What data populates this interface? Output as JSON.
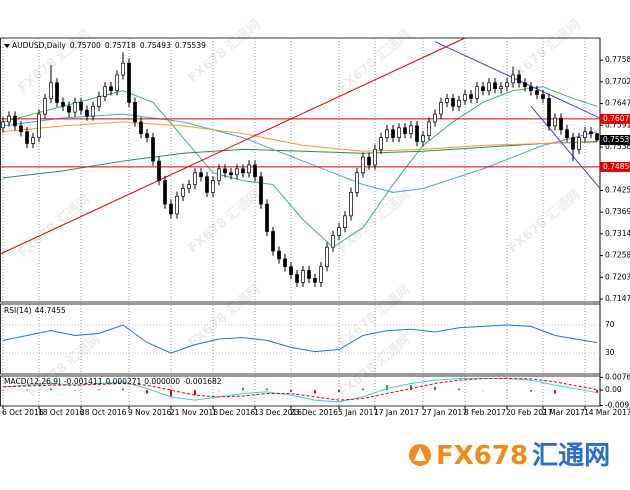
{
  "chart_data": {
    "type": "candlestick",
    "symbol": "AUDUSD,Daily",
    "candles": {
      "open": [
        0.7585,
        0.76,
        0.7615,
        0.759,
        0.7575,
        0.7545,
        0.756,
        0.762,
        0.766,
        0.77,
        0.765,
        0.764,
        0.7625,
        0.765,
        0.763,
        0.7615,
        0.764,
        0.7665,
        0.769,
        0.768,
        0.772,
        0.775,
        0.765,
        0.76,
        0.757,
        0.756,
        0.75,
        0.745,
        0.739,
        0.7365,
        0.741,
        0.743,
        0.744,
        0.747,
        0.746,
        0.742,
        0.745,
        0.748,
        0.747,
        0.7465,
        0.748,
        0.747,
        0.749,
        0.746,
        0.739,
        0.732,
        0.727,
        0.725,
        0.723,
        0.721,
        0.719,
        0.722,
        0.72,
        0.719,
        0.723,
        0.728,
        0.731,
        0.733,
        0.736,
        0.742,
        0.747,
        0.751,
        0.749,
        0.753,
        0.756,
        0.758,
        0.756,
        0.7585,
        0.757,
        0.759,
        0.755,
        0.7565,
        0.76,
        0.762,
        0.765,
        0.766,
        0.764,
        0.7655,
        0.767,
        0.766,
        0.769,
        0.768,
        0.77,
        0.7685,
        0.769,
        0.77,
        0.772,
        0.77,
        0.769,
        0.768,
        0.767,
        0.766,
        0.759,
        0.761,
        0.758,
        0.756,
        0.753,
        0.756,
        0.7575,
        0.757
      ],
      "high": [
        0.7612,
        0.7627,
        0.7627,
        0.7602,
        0.7587,
        0.7572,
        0.7632,
        0.7672,
        0.7745,
        0.7712,
        0.7662,
        0.7652,
        0.7662,
        0.7662,
        0.7642,
        0.7652,
        0.7677,
        0.7702,
        0.7702,
        0.7732,
        0.7778,
        0.7762,
        0.7662,
        0.7612,
        0.7582,
        0.7572,
        0.7512,
        0.7462,
        0.7402,
        0.7422,
        0.7442,
        0.7452,
        0.7482,
        0.7482,
        0.7472,
        0.7462,
        0.7492,
        0.7492,
        0.7482,
        0.7492,
        0.7492,
        0.7502,
        0.7502,
        0.7472,
        0.7402,
        0.7332,
        0.7282,
        0.7262,
        0.7242,
        0.7222,
        0.7232,
        0.7232,
        0.7212,
        0.7242,
        0.7292,
        0.7322,
        0.7342,
        0.7372,
        0.7432,
        0.7482,
        0.7522,
        0.7522,
        0.7542,
        0.7572,
        0.7592,
        0.7592,
        0.7597,
        0.7597,
        0.7602,
        0.7602,
        0.7577,
        0.7612,
        0.7632,
        0.7662,
        0.7672,
        0.7672,
        0.7667,
        0.7682,
        0.7682,
        0.7702,
        0.7702,
        0.7712,
        0.7712,
        0.7702,
        0.7712,
        0.7742,
        0.7732,
        0.7712,
        0.7702,
        0.7692,
        0.7682,
        0.7672,
        0.7622,
        0.7622,
        0.7592,
        0.7572,
        0.7572,
        0.7587,
        0.7587,
        0.75718
      ],
      "low": [
        0.7573,
        0.7588,
        0.7578,
        0.7563,
        0.7533,
        0.7533,
        0.7548,
        0.7608,
        0.7648,
        0.7638,
        0.7628,
        0.7613,
        0.7613,
        0.7618,
        0.7603,
        0.7603,
        0.7628,
        0.7653,
        0.7668,
        0.7668,
        0.7708,
        0.7638,
        0.7588,
        0.7558,
        0.7548,
        0.7488,
        0.7438,
        0.7378,
        0.7353,
        0.7353,
        0.7398,
        0.7418,
        0.7428,
        0.7448,
        0.7408,
        0.7408,
        0.7438,
        0.7458,
        0.7453,
        0.7453,
        0.7458,
        0.7458,
        0.7448,
        0.7378,
        0.7308,
        0.7258,
        0.7238,
        0.7218,
        0.7198,
        0.7178,
        0.7178,
        0.7188,
        0.7178,
        0.7178,
        0.7218,
        0.7268,
        0.7298,
        0.7318,
        0.7348,
        0.7408,
        0.7458,
        0.7478,
        0.7478,
        0.7518,
        0.7548,
        0.7548,
        0.7548,
        0.7558,
        0.7558,
        0.7538,
        0.7538,
        0.7553,
        0.7588,
        0.7608,
        0.7638,
        0.7628,
        0.7628,
        0.7643,
        0.7648,
        0.7648,
        0.7668,
        0.7668,
        0.7673,
        0.7673,
        0.7678,
        0.7688,
        0.7688,
        0.7678,
        0.7668,
        0.7658,
        0.7648,
        0.7578,
        0.7578,
        0.7568,
        0.7548,
        0.75,
        0.7518,
        0.7548,
        0.7558,
        0.75493
      ],
      "close": [
        0.76,
        0.7615,
        0.759,
        0.7575,
        0.7545,
        0.756,
        0.762,
        0.766,
        0.77,
        0.765,
        0.764,
        0.7625,
        0.765,
        0.763,
        0.7615,
        0.764,
        0.7665,
        0.769,
        0.768,
        0.772,
        0.775,
        0.765,
        0.76,
        0.757,
        0.756,
        0.75,
        0.745,
        0.739,
        0.7365,
        0.741,
        0.743,
        0.744,
        0.747,
        0.746,
        0.742,
        0.745,
        0.748,
        0.747,
        0.7465,
        0.748,
        0.747,
        0.749,
        0.746,
        0.739,
        0.732,
        0.727,
        0.725,
        0.723,
        0.721,
        0.719,
        0.722,
        0.72,
        0.719,
        0.723,
        0.728,
        0.731,
        0.733,
        0.736,
        0.742,
        0.747,
        0.751,
        0.749,
        0.753,
        0.756,
        0.758,
        0.756,
        0.7585,
        0.757,
        0.759,
        0.755,
        0.7565,
        0.76,
        0.762,
        0.765,
        0.766,
        0.764,
        0.7655,
        0.767,
        0.766,
        0.769,
        0.768,
        0.77,
        0.7685,
        0.769,
        0.77,
        0.772,
        0.77,
        0.769,
        0.768,
        0.767,
        0.766,
        0.759,
        0.761,
        0.758,
        0.756,
        0.753,
        0.756,
        0.7575,
        0.757,
        0.75539
      ]
    },
    "last_labels": {
      "open": "0.75700",
      "high": "0.75718",
      "low": "0.75493",
      "close": "0.75539"
    },
    "ylim": [
      0.71398,
      0.78145
    ],
    "yticks": [
      {
        "value": 0.7758,
        "label": "0.77580"
      },
      0.77025,
      {
        "value": 0.7647,
        "label": "0.76470"
      },
      0.75915,
      {
        "value": 0.7536,
        "label": "0.75360"
      },
      {
        "value": 0.7425,
        "label": "0.74250"
      },
      0.73695,
      0.73141,
      0.72585,
      {
        "value": 0.7203,
        "label": "0.72030"
      },
      0.71475
    ],
    "xticks": [
      {
        "value": 0,
        "label": "6 Oct 2016"
      },
      {
        "value": 6,
        "label": "18 Oct 2016"
      },
      {
        "value": 13,
        "label": "28 Oct 2016"
      },
      {
        "value": 21,
        "label": "9 Nov 2016"
      },
      {
        "value": 28,
        "label": "21 Nov 2016"
      },
      {
        "value": 35,
        "label": "1 Dec 2016"
      },
      {
        "value": 42,
        "label": "13 Dec 2016"
      },
      {
        "value": 48,
        "label": "23 Dec 2016"
      },
      {
        "value": 56,
        "label": "5 Jan 2017"
      },
      {
        "value": 62,
        "label": "17 Jan 2017"
      },
      {
        "value": 70,
        "label": "27 Jan 2017"
      },
      {
        "value": 77,
        "label": "8 Feb 2017"
      },
      {
        "value": 84,
        "label": "20 Feb 2017"
      },
      {
        "value": 90,
        "label": "2 Mar 2017"
      },
      {
        "value": 97,
        "label": "14 Mar 2017"
      }
    ],
    "levels": [
      {
        "value": 0.76078,
        "color": "#e00000"
      },
      {
        "value": 0.7485,
        "label": "0.74850",
        "color": "#e00000"
      }
    ],
    "moving_averages": [
      {
        "color": "#3cb371",
        "x": [
          0,
          10,
          20,
          25,
          30,
          35,
          40,
          45,
          50,
          55,
          60,
          65,
          70,
          75,
          80,
          85,
          90,
          95,
          99
        ],
        "values": [
          0.76,
          0.764,
          0.768,
          0.765,
          0.756,
          0.747,
          0.745,
          0.744,
          0.735,
          0.728,
          0.733,
          0.744,
          0.754,
          0.76,
          0.765,
          0.768,
          0.769,
          0.766,
          0.764
        ]
      },
      {
        "color": "#2e8b57",
        "x": [
          0,
          10,
          20,
          30,
          40,
          50,
          60,
          70,
          80,
          90,
          99
        ],
        "values": [
          0.7457,
          0.7475,
          0.75,
          0.752,
          0.753,
          0.7525,
          0.752,
          0.7525,
          0.7535,
          0.7545,
          0.755
        ]
      },
      {
        "color": "#48a6c8",
        "x": [
          0,
          10,
          20,
          30,
          40,
          50,
          60,
          65,
          70,
          80,
          90,
          99
        ],
        "values": [
          0.759,
          0.761,
          0.762,
          0.76,
          0.756,
          0.75,
          0.744,
          0.742,
          0.743,
          0.748,
          0.754,
          0.7575
        ]
      },
      {
        "color": "#e8a040",
        "x": [
          0,
          10,
          20,
          30,
          40,
          50,
          60,
          70,
          80,
          90,
          99
        ],
        "values": [
          0.7575,
          0.759,
          0.76,
          0.759,
          0.757,
          0.754,
          0.7525,
          0.753,
          0.754,
          0.7545,
          0.7548
        ]
      }
    ],
    "trendlines": [
      {
        "color": "#e00000",
        "x": [
          -0.5,
          77
        ],
        "y": [
          0.7262,
          0.78145
        ]
      },
      {
        "color": "#4040d0",
        "x": [
          72,
          99.5
        ],
        "y": [
          0.7805,
          0.761
        ]
      },
      {
        "color": "#4040d0",
        "x": [
          88,
          99.5
        ],
        "y": [
          0.764,
          0.743
        ]
      }
    ],
    "rsi": {
      "label": "RSI(14)",
      "color": "#1e78d2",
      "x": [
        0,
        4,
        8,
        12,
        16,
        20,
        24,
        28,
        32,
        36,
        40,
        44,
        48,
        52,
        56,
        60,
        64,
        68,
        72,
        76,
        80,
        84,
        88,
        92,
        99
      ],
      "values": [
        48,
        55,
        62,
        55,
        58,
        70,
        45,
        30,
        42,
        50,
        52,
        48,
        38,
        32,
        35,
        55,
        62,
        64,
        60,
        66,
        68,
        70,
        68,
        55,
        44.7455
      ],
      "ylim": [
        0,
        100
      ],
      "yticks": [
        70,
        30
      ]
    },
    "macd": {
      "label": "MACD(12,26,9)",
      "x": [
        0,
        4,
        8,
        12,
        16,
        20,
        24,
        28,
        32,
        36,
        40,
        44,
        48,
        52,
        56,
        60,
        64,
        68,
        72,
        76,
        80,
        84,
        88,
        92,
        99
      ],
      "main": [
        0.002,
        0.003,
        0.004,
        0.003,
        0.004,
        0.005,
        0.001,
        -0.004,
        -0.006,
        -0.004,
        -0.002,
        -0.001,
        -0.003,
        -0.006,
        -0.007,
        -0.004,
        0.001,
        0.004,
        0.006,
        0.007,
        0.007,
        0.007,
        0.006,
        0.003,
        -0.001411
      ],
      "signal": [
        0.002,
        0.0025,
        0.003,
        0.003,
        0.0035,
        0.004,
        0.003,
        0,
        -0.003,
        -0.004,
        -0.0035,
        -0.002,
        -0.002,
        -0.004,
        -0.006,
        -0.005,
        -0.002,
        0.001,
        0.004,
        0.006,
        0.007,
        0.007,
        0.0068,
        0.005,
        0.000271
      ],
      "zero_buffer": {
        "value": 0,
        "label": "0.000000"
      },
      "histogram": [
        0,
        0.0005,
        0.001,
        0,
        0.0005,
        0.001,
        -0.002,
        -0.004,
        -0.003,
        0,
        0.0015,
        0.001,
        -0.001,
        -0.002,
        -0.001,
        0.001,
        0.003,
        0.003,
        0.002,
        0.001,
        0,
        0,
        -0.0008,
        -0.002,
        -0.001682
      ],
      "main_color": "#40d0e0",
      "signal_color": "#e00000",
      "up_color": "#20a020",
      "down_color": "#e00000",
      "ylim": [
        -0.0095,
        0.0085
      ],
      "yticks": [
        0.00765,
        {
          "value": 0,
          "label": "0.00"
        },
        -0.00915
      ]
    },
    "brand": [
      "FX678",
      "汇通网"
    ]
  }
}
